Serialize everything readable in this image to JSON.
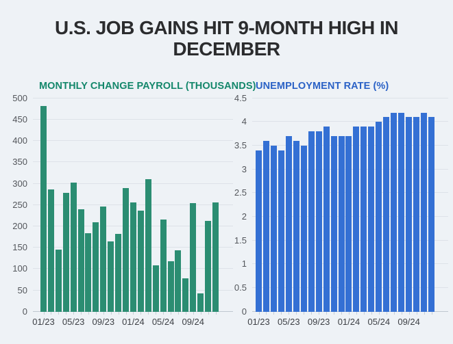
{
  "page": {
    "headline": "U.S. JOB GAINS HIT 9-MONTH HIGH IN DECEMBER",
    "background": "#eef2f6",
    "headline_color": "#2b2c2e"
  },
  "chart_data": [
    {
      "type": "bar",
      "title": "MONTHLY CHANGE PAYROLL (THOUSANDS)",
      "title_color": "#14876b",
      "bar_color": "#2b8d72",
      "categories": [
        "01/23",
        "02/23",
        "03/23",
        "04/23",
        "05/23",
        "06/23",
        "07/23",
        "08/23",
        "09/23",
        "10/23",
        "11/23",
        "12/23",
        "01/24",
        "02/24",
        "03/24",
        "04/24",
        "05/24",
        "06/24",
        "07/24",
        "08/24",
        "09/24",
        "10/24",
        "11/24",
        "12/24"
      ],
      "values": [
        482,
        287,
        146,
        278,
        303,
        240,
        184,
        210,
        246,
        165,
        182,
        290,
        256,
        236,
        310,
        108,
        216,
        118,
        144,
        78,
        255,
        43,
        212,
        256
      ],
      "xlabel": "",
      "ylabel": "",
      "ylim": [
        0,
        500
      ],
      "yticks": [
        0,
        50,
        100,
        150,
        200,
        250,
        300,
        350,
        400,
        450,
        500
      ],
      "xtick_labels": [
        "01/23",
        "05/23",
        "09/23",
        "01/24",
        "05/24",
        "09/24"
      ],
      "xtick_every": 4,
      "grid": true,
      "legend": "none"
    },
    {
      "type": "bar",
      "title": "UNEMPLOYMENT RATE (%)",
      "title_color": "#2b62c6",
      "bar_color": "#3470d4",
      "categories": [
        "01/23",
        "02/23",
        "03/23",
        "04/23",
        "05/23",
        "06/23",
        "07/23",
        "08/23",
        "09/23",
        "10/23",
        "11/23",
        "12/23",
        "01/24",
        "02/24",
        "03/24",
        "04/24",
        "05/24",
        "06/24",
        "07/24",
        "08/24",
        "09/24",
        "10/24",
        "11/24",
        "12/24"
      ],
      "values": [
        3.4,
        3.6,
        3.5,
        3.4,
        3.7,
        3.6,
        3.5,
        3.8,
        3.8,
        3.9,
        3.7,
        3.7,
        3.7,
        3.9,
        3.9,
        3.9,
        4.0,
        4.1,
        4.2,
        4.2,
        4.1,
        4.1,
        4.2,
        4.1
      ],
      "xlabel": "",
      "ylabel": "",
      "ylim": [
        0,
        4.5
      ],
      "yticks": [
        0,
        0.5,
        1,
        1.5,
        2,
        2.5,
        3,
        3.5,
        4,
        4.5
      ],
      "xtick_labels": [
        "01/23",
        "05/23",
        "09/23",
        "01/24",
        "05/24",
        "09/24"
      ],
      "xtick_every": 4,
      "grid": true,
      "legend": "none"
    }
  ]
}
